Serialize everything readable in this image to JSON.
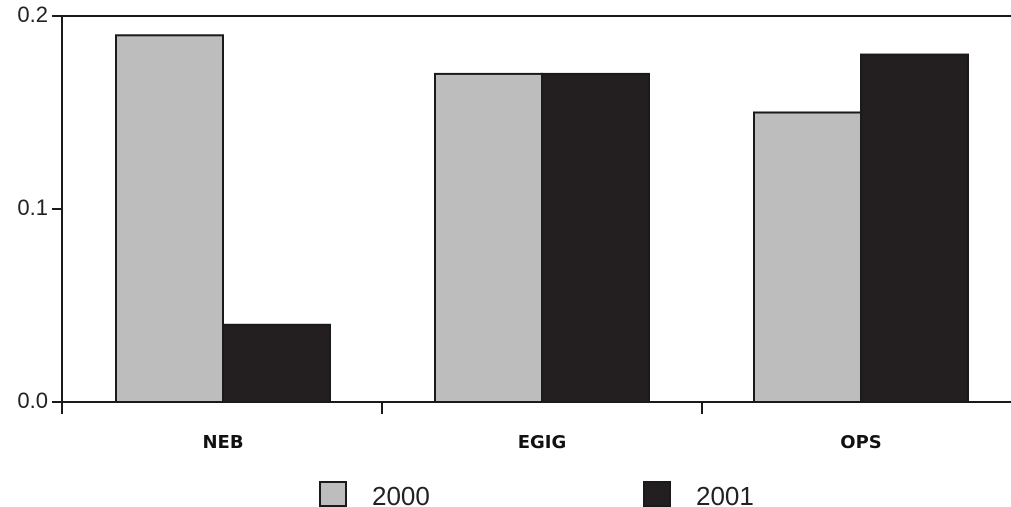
{
  "chart_data": {
    "type": "bar",
    "title": "",
    "xlabel": "",
    "ylabel": "",
    "categories": [
      "NEB",
      "EGIG",
      "OPS"
    ],
    "series": [
      {
        "name": "2000",
        "values": [
          0.19,
          0.17,
          0.15
        ],
        "color": "#bdbdbd"
      },
      {
        "name": "2001",
        "values": [
          0.04,
          0.17,
          0.18
        ],
        "color": "#231f20"
      }
    ],
    "ylim": [
      0.0,
      0.2
    ],
    "yticks": [
      {
        "value": 0.0,
        "label": "0.0"
      },
      {
        "value": 0.1,
        "label": "0.1"
      },
      {
        "value": 0.2,
        "label": "0.2"
      }
    ],
    "grid": false,
    "legend_position": "bottom"
  }
}
